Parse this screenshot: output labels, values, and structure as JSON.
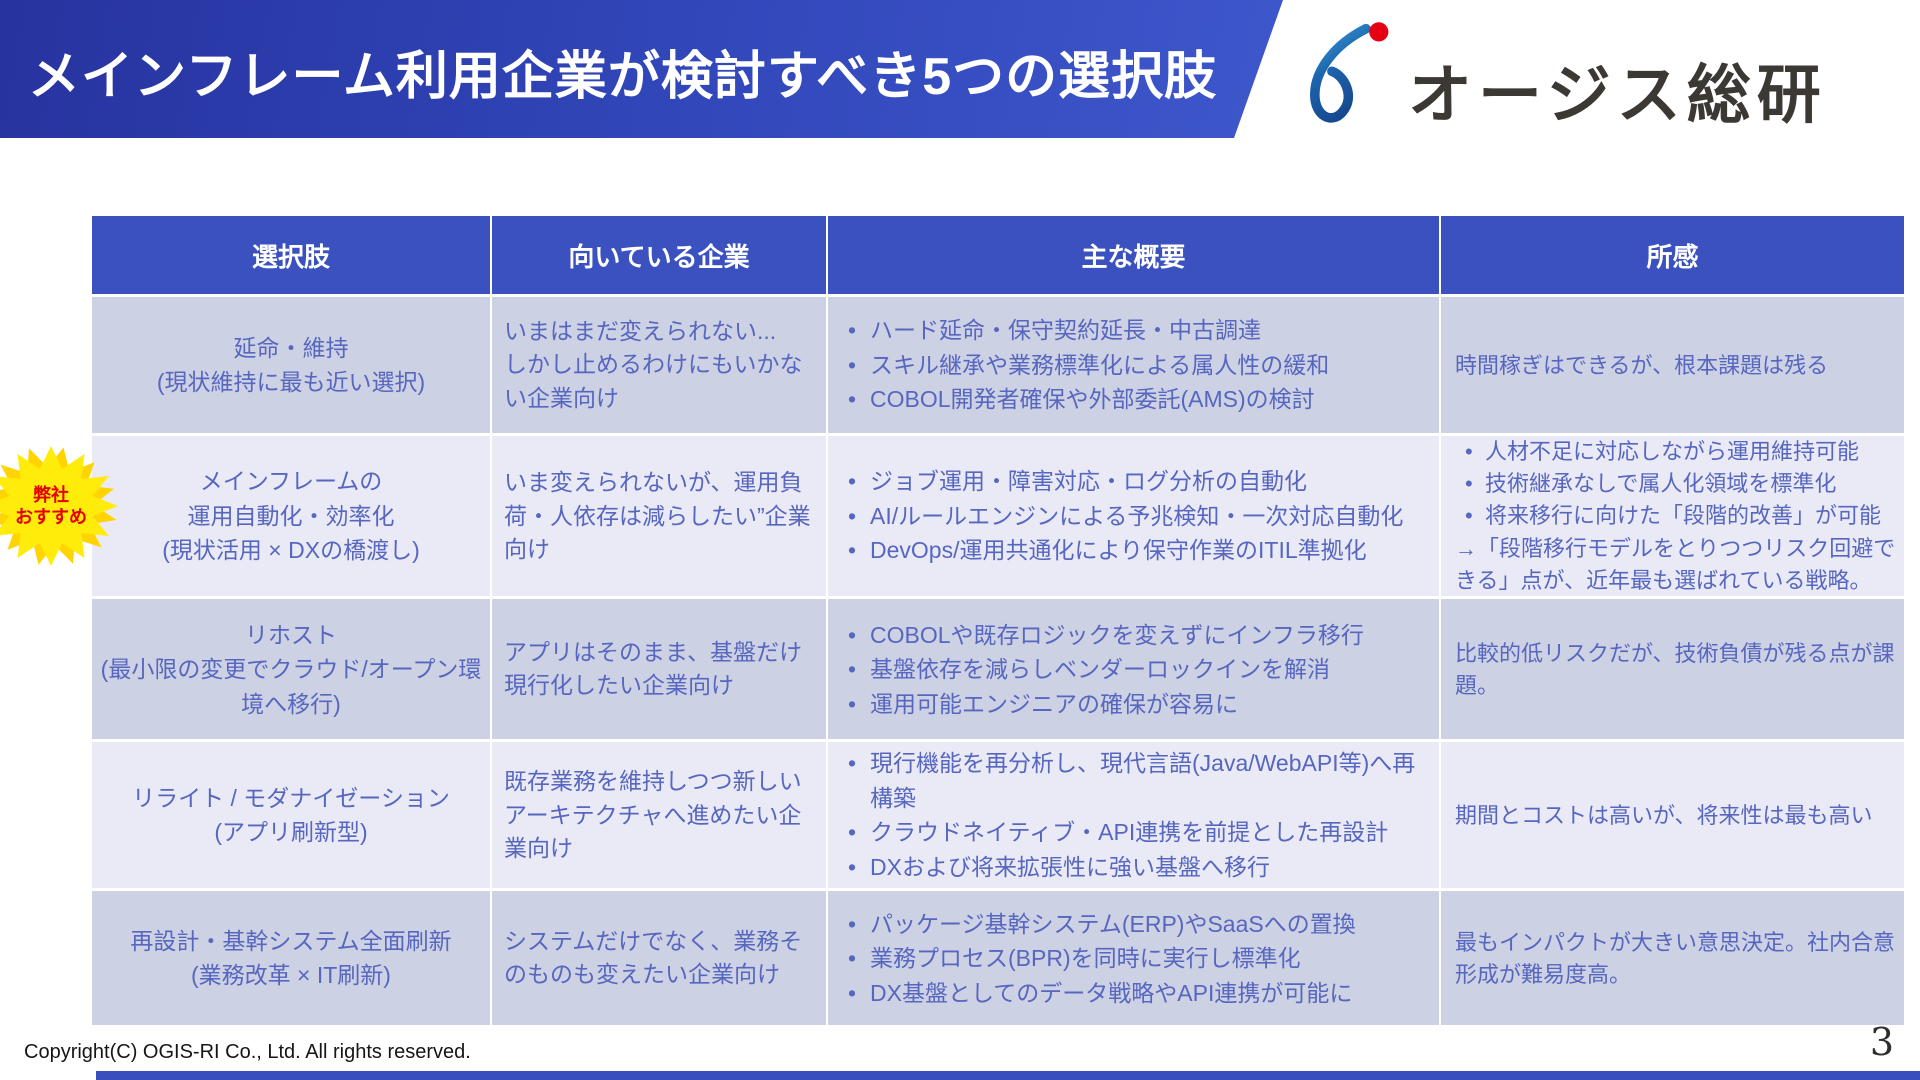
{
  "slide": {
    "title": "メインフレーム利用企業が検討すべき5つの選択肢",
    "logo_text": "オージス総研",
    "badge": [
      "弊社",
      "おすすめ"
    ],
    "copyright": "Copyright(C)  OGIS-RI Co., Ltd. All rights reserved.",
    "page_number": "3"
  },
  "colors": {
    "banner_blue_dark": "#27339f",
    "banner_blue_light": "#3f58cd",
    "table_header_blue": "#3a51bf",
    "row_odd_bg": "#cdd1e4",
    "row_even_bg": "#e9eaf5",
    "cell_text_blue": "#5766bf",
    "badge_yellow": "#ffec0a",
    "badge_text_red": "#e60000",
    "logo_mark_blue": "#1c63ad",
    "logo_dot_red": "#e60012",
    "footer_bar_blue": "#3950bc"
  },
  "table": {
    "headers": [
      "選択肢",
      "向いている企業",
      "主な概要",
      "所感"
    ],
    "rows": [
      {
        "recommended": false,
        "option": [
          "延命・維持",
          "(現状維持に最も近い選択)"
        ],
        "suited": [
          "いまはまだ変えられない...",
          "しかし止めるわけにもいかない企業向け"
        ],
        "overview": [
          "ハード延命・保守契約延長・中古調達",
          "スキル継承や業務標準化による属人性の緩和",
          "COBOL開発者確保や外部委託(AMS)の検討"
        ],
        "impression": {
          "bullets": [],
          "lines": [
            "時間稼ぎはできるが、根本課題は残る"
          ]
        }
      },
      {
        "recommended": true,
        "option": [
          "メインフレームの",
          "運用自動化・効率化",
          "(現状活用 × DXの橋渡し)"
        ],
        "suited": [
          "いま変えられないが、運用負荷・人依存は減らしたい”企業向け"
        ],
        "overview": [
          "ジョブ運用・障害対応・ログ分析の自動化",
          "AI/ルールエンジンによる予兆検知・一次対応自動化",
          "DevOps/運用共通化により保守作業のITIL準拠化"
        ],
        "impression": {
          "bullets": [
            "人材不足に対応しながら運用維持可能",
            "技術継承なしで属人化領域を標準化",
            "将来移行に向けた「段階的改善」が可能"
          ],
          "lines": [
            "→「段階移行モデルをとりつつリスク回避できる」点が、近年最も選ばれている戦略。"
          ]
        }
      },
      {
        "recommended": false,
        "option": [
          "リホスト",
          "(最小限の変更でクラウド/オープン環境へ移行)"
        ],
        "suited": [
          "アプリはそのまま、基盤だけ現行化したい企業向け"
        ],
        "overview": [
          "COBOLや既存ロジックを変えずにインフラ移行",
          "基盤依存を減らしベンダーロックインを解消",
          "運用可能エンジニアの確保が容易に"
        ],
        "impression": {
          "bullets": [],
          "lines": [
            "比較的低リスクだが、技術負債が残る点が課題。"
          ]
        }
      },
      {
        "recommended": false,
        "option": [
          "リライト / モダナイゼーション",
          "(アプリ刷新型)"
        ],
        "suited": [
          "既存業務を維持しつつ新しいアーキテクチャへ進めたい企業向け"
        ],
        "overview": [
          "現行機能を再分析し、現代言語(Java/WebAPI等)へ再構築",
          "クラウドネイティブ・API連携を前提とした再設計",
          "DXおよび将来拡張性に強い基盤へ移行"
        ],
        "impression": {
          "bullets": [],
          "lines": [
            "期間とコストは高いが、将来性は最も高い"
          ]
        }
      },
      {
        "recommended": false,
        "option": [
          "再設計・基幹システム全面刷新",
          "(業務改革 × IT刷新)"
        ],
        "suited": [
          "システムだけでなく、業務そのものも変えたい企業向け"
        ],
        "overview": [
          "パッケージ基幹システム(ERP)やSaaSへの置換",
          "業務プロセス(BPR)を同時に実行し標準化",
          "DX基盤としてのデータ戦略やAPI連携が可能に"
        ],
        "impression": {
          "bullets": [],
          "lines": [
            "最もインパクトが大きい意思決定。社内合意形成が難易度高。"
          ]
        }
      }
    ]
  }
}
